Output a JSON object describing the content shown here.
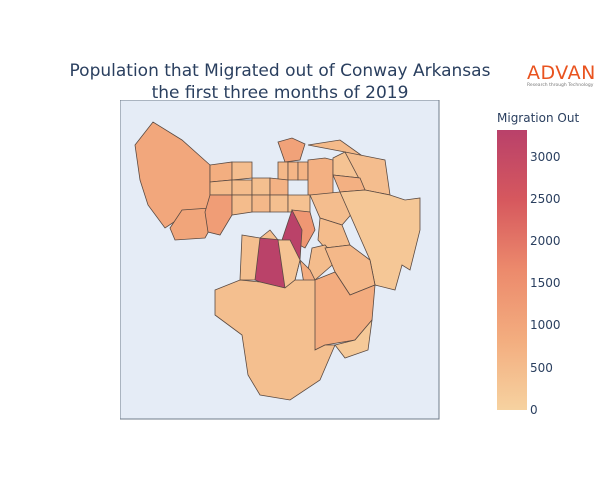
{
  "title_line1": "Population that Migrated out of Conway Arkansas",
  "title_line2": "the first three months of 2019",
  "logo": {
    "name": "ADVAN",
    "tagline": "Research through Technology"
  },
  "colorbar": {
    "title": "Migration Out",
    "ticks": [
      "3000",
      "2500",
      "2000",
      "1500",
      "1000",
      "500",
      "0"
    ],
    "colors": {
      "high": "#b9416a",
      "mid": "#ec8a6c",
      "low": "#f6d2a0"
    }
  },
  "chart_data": {
    "type": "choropleth",
    "title": "Population that Migrated out of Conway Arkansas the first three months of 2019",
    "colorbar_title": "Migration Out",
    "color_range": [
      0,
      3300
    ],
    "regions": [
      {
        "value": 1100
      },
      {
        "value": 1150
      },
      {
        "value": 950
      },
      {
        "value": 550
      },
      {
        "value": 650
      },
      {
        "value": 1200
      },
      {
        "value": 700
      },
      {
        "value": 750
      },
      {
        "value": 800
      },
      {
        "value": 600
      },
      {
        "value": 500
      },
      {
        "value": 850
      },
      {
        "value": 900
      },
      {
        "value": 400
      },
      {
        "value": 650
      },
      {
        "value": 550
      },
      {
        "value": 900
      },
      {
        "value": 1300
      },
      {
        "value": 600
      },
      {
        "value": 700
      },
      {
        "value": 500
      },
      {
        "value": 450
      },
      {
        "value": 550
      },
      {
        "value": 1400
      },
      {
        "value": 300
      },
      {
        "value": 600
      },
      {
        "value": 500
      },
      {
        "value": 3250
      },
      {
        "value": 600
      },
      {
        "value": 700
      },
      {
        "value": 1000
      },
      {
        "value": 400
      },
      {
        "value": 250
      },
      {
        "value": 500
      }
    ]
  }
}
